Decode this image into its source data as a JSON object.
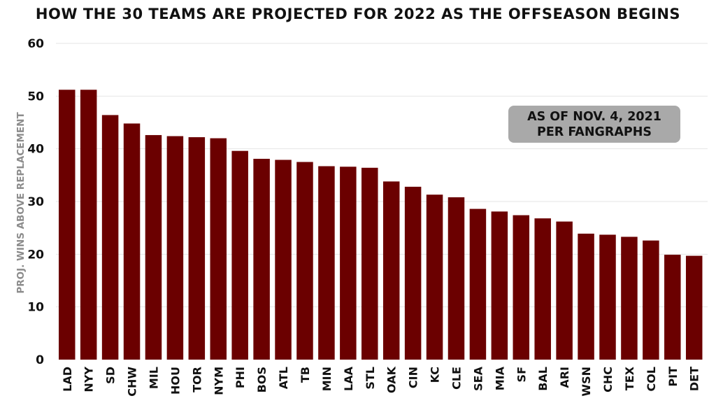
{
  "chart_data": {
    "type": "bar",
    "title": "HOW THE 30 TEAMS ARE PROJECTED FOR 2022 AS THE OFFSEASON BEGINS",
    "xlabel": "",
    "ylabel": "PROJ. WINS ABOVE REPLACEMENT",
    "ylim": [
      0,
      60
    ],
    "yticks": [
      0,
      10,
      20,
      30,
      40,
      50,
      60
    ],
    "grid": true,
    "bar_color": "#6b0000",
    "categories": [
      "LAD",
      "NYY",
      "SD",
      "CHW",
      "MIL",
      "HOU",
      "TOR",
      "NYM",
      "PHI",
      "BOS",
      "ATL",
      "TB",
      "MIN",
      "LAA",
      "STL",
      "OAK",
      "CIN",
      "KC",
      "CLE",
      "SEA",
      "MIA",
      "SF",
      "BAL",
      "ARI",
      "WSN",
      "CHC",
      "TEX",
      "COL",
      "PIT",
      "DET"
    ],
    "values": [
      51.2,
      51.2,
      46.4,
      44.8,
      42.6,
      42.4,
      42.2,
      42.0,
      39.6,
      38.1,
      37.9,
      37.5,
      36.7,
      36.6,
      36.4,
      33.8,
      32.8,
      31.3,
      30.8,
      28.6,
      28.1,
      27.4,
      26.8,
      26.2,
      23.9,
      23.7,
      23.3,
      22.6,
      19.9,
      19.7
    ],
    "annotation": {
      "line1": "AS OF NOV. 4, 2021",
      "line2": "PER FANGRAPHS",
      "background": "#a9a9a9"
    }
  }
}
